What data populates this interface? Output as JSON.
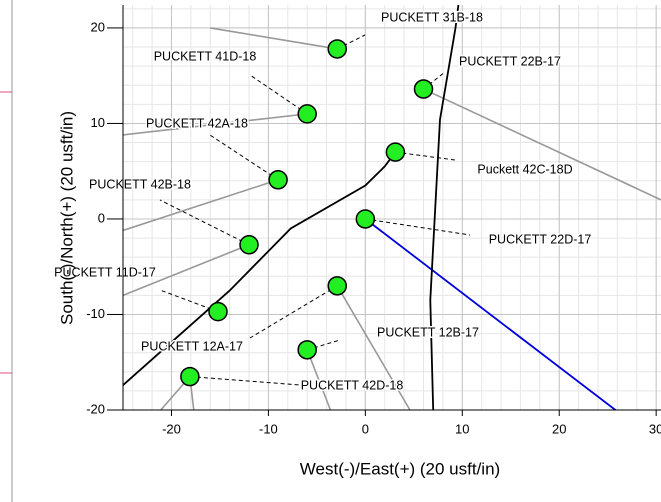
{
  "chart_data": {
    "type": "scatter",
    "x_label": "West(-)/East(+) (20 usft/in)",
    "y_label": "South(-)/North(+) (20 usft/in)",
    "xlim": [
      -25,
      30.5
    ],
    "ylim": [
      -20,
      22.4
    ],
    "xticks": [
      -20,
      -10,
      0,
      10,
      20,
      30
    ],
    "yticks": [
      -20,
      -10,
      0,
      10,
      20
    ],
    "grid": true,
    "marker_color": "#22ee22",
    "labels": [
      "PUCKETT 31B-18",
      "PUCKETT 41D-18",
      "PUCKETT 22B-17",
      "PUCKETT 42A-18",
      "Puckett 42C-18D",
      "PUCKETT 42B-18",
      "PUCKETT 22D-17",
      "PUCKETT 11D-17",
      "PUCKETT 12A-17",
      "PUCKETT 12B-17",
      "PUCKETT 42D-18"
    ],
    "x": [
      -2.9,
      -6,
      6,
      -9,
      3.1,
      -12,
      0,
      -15.2,
      -2.9,
      -6,
      -18.1
    ],
    "y": [
      17.8,
      11,
      13.6,
      4.1,
      7,
      -2.7,
      0,
      -9.7,
      -7,
      -13.7,
      -16.5
    ],
    "series": [
      {
        "color": "#999999",
        "x": [
          -16,
          -2.9
        ],
        "y": [
          20,
          17.8
        ]
      },
      {
        "color": "#999999",
        "x": [
          -25,
          -6
        ],
        "y": [
          8.8,
          11
        ]
      },
      {
        "color": "#999999",
        "x": [
          6,
          30.5
        ],
        "y": [
          13.6,
          2
        ]
      },
      {
        "color": "#999999",
        "x": [
          -25,
          -9
        ],
        "y": [
          -1.2,
          4.1
        ]
      },
      {
        "color": "#999999",
        "x": [
          -25,
          -12
        ],
        "y": [
          -8,
          -2.7
        ]
      },
      {
        "color": "#999999",
        "x": [
          -2.9,
          4.6
        ],
        "y": [
          -7,
          -20
        ]
      },
      {
        "color": "#999999",
        "x": [
          -6,
          -3.6
        ],
        "y": [
          -13.7,
          -20
        ]
      },
      {
        "color": "#999999",
        "x": [
          -21.1,
          -18.1,
          -17.7
        ],
        "y": [
          -20,
          -16.5,
          -20
        ]
      },
      {
        "color": "#0000dd",
        "x": [
          0,
          25.8
        ],
        "y": [
          0,
          -20
        ]
      },
      {
        "color": "#000000",
        "x": [
          -25,
          -14,
          -7.7,
          0,
          2,
          3.1
        ],
        "y": [
          -17.4,
          -7.5,
          -1,
          3.5,
          5.5,
          7
        ]
      },
      {
        "color": "#000000",
        "x": [
          7,
          6.7,
          7.7,
          9.3,
          9.6
        ],
        "y": [
          -20,
          -8.5,
          10.4,
          20,
          22.4
        ]
      }
    ]
  }
}
